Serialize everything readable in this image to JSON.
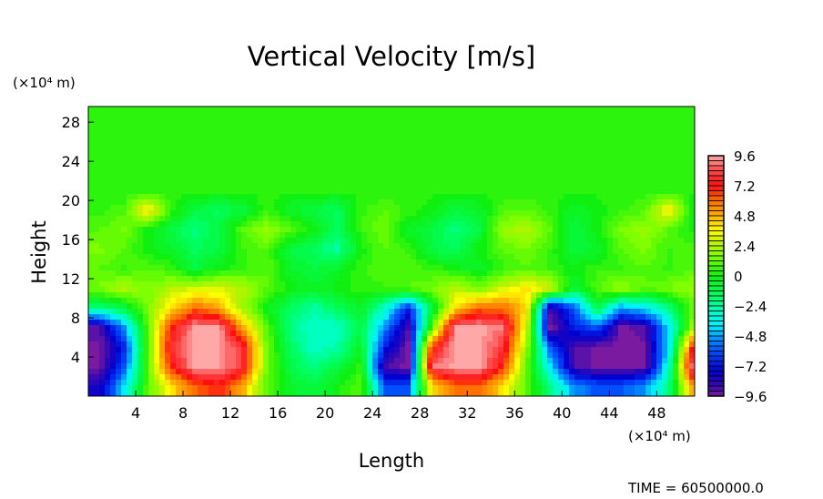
{
  "chart_data": {
    "type": "heatmap",
    "title": "Vertical Velocity [m/s]",
    "xlabel": "Length",
    "ylabel": "Height",
    "x_unit_label": "(×10⁴ m)",
    "y_unit_label": "(×10⁴ m)",
    "xlim": [
      0,
      51.2
    ],
    "ylim": [
      0,
      29.6
    ],
    "xticks": [
      4,
      8,
      12,
      16,
      20,
      24,
      28,
      32,
      36,
      40,
      44,
      48
    ],
    "yticks": [
      4,
      8,
      12,
      16,
      20,
      24,
      28
    ],
    "x": [
      1,
      3,
      5,
      7,
      9,
      11,
      13,
      15,
      17,
      19,
      21,
      23,
      25,
      27,
      29,
      31,
      33,
      35,
      37,
      39,
      41,
      43,
      45,
      47,
      49,
      51
    ],
    "y": [
      29,
      27,
      25,
      23,
      21,
      19,
      17,
      15,
      13,
      11,
      9,
      7,
      5,
      3,
      1
    ],
    "z": [
      [
        0.5,
        0.5,
        0.5,
        0.5,
        0.5,
        0.5,
        0.5,
        0.5,
        0.5,
        0.5,
        0.5,
        0.5,
        0.5,
        0.5,
        0.5,
        0.5,
        0.5,
        0.5,
        0.5,
        0.5,
        0.5,
        0.5,
        0.5,
        0.5,
        0.5,
        0.5
      ],
      [
        0.5,
        0.5,
        0.5,
        0.5,
        0.5,
        0.5,
        0.5,
        0.5,
        0.5,
        0.5,
        0.5,
        0.5,
        0.5,
        0.5,
        0.5,
        0.5,
        0.5,
        0.5,
        0.5,
        0.5,
        0.5,
        0.5,
        0.5,
        0.5,
        0.5,
        0.5
      ],
      [
        0.5,
        0.5,
        0.5,
        0.5,
        0.5,
        0.5,
        0.5,
        0.5,
        0.5,
        0.5,
        0.5,
        0.5,
        0.5,
        0.5,
        0.5,
        0.5,
        0.5,
        0.5,
        0.5,
        0.5,
        0.5,
        0.5,
        0.5,
        0.5,
        0.5,
        0.5
      ],
      [
        0.5,
        0.5,
        0.5,
        0.5,
        0.5,
        0.5,
        0.5,
        0.5,
        0.5,
        0.5,
        0.5,
        0.5,
        0.5,
        0.5,
        0.5,
        0.5,
        0.5,
        0.5,
        0.5,
        0.5,
        0.5,
        0.5,
        0.5,
        0.5,
        0.5,
        0.5
      ],
      [
        0.3,
        0.3,
        0.3,
        0.3,
        0.3,
        0.3,
        0.3,
        0.3,
        0.3,
        0.3,
        0.3,
        0.3,
        0.3,
        0.3,
        0.3,
        0.3,
        0.3,
        0.3,
        0.3,
        0.3,
        0.3,
        0.3,
        0.3,
        0.3,
        0.3,
        0.3
      ],
      [
        0.5,
        0.8,
        4,
        0.5,
        -1,
        -1.5,
        -1,
        0.5,
        -0.5,
        -1,
        -1.5,
        0.5,
        1,
        0.5,
        0,
        -1,
        -0.5,
        0.8,
        1,
        0.5,
        -0.5,
        0,
        0.5,
        1,
        4,
        -0.3
      ],
      [
        1,
        1.5,
        0,
        -1,
        -2,
        -1,
        1,
        2,
        1,
        0,
        -1.5,
        0.5,
        1.5,
        -0.5,
        -1,
        -2,
        -1,
        2,
        2.5,
        1,
        -1,
        0,
        1.5,
        2,
        1,
        0
      ],
      [
        1.5,
        1,
        0,
        -0.5,
        -1.5,
        -1,
        0.5,
        1,
        -1,
        -1.5,
        -2.5,
        0,
        1,
        0.5,
        -1,
        -1.5,
        0,
        1,
        1.5,
        0.5,
        -1,
        -0.5,
        1,
        1.5,
        0.5,
        1
      ],
      [
        1,
        0.5,
        1,
        0.5,
        -1,
        0,
        0.5,
        1,
        -0.5,
        -1,
        -0.5,
        0.5,
        1,
        1,
        0.5,
        0,
        -0.5,
        0.5,
        1,
        0.5,
        0,
        0.5,
        0.5,
        1,
        0.5,
        1
      ],
      [
        1.5,
        2.5,
        1.5,
        2.5,
        3,
        3,
        2.5,
        1,
        0,
        -0.5,
        0,
        0.5,
        0.5,
        1,
        1.5,
        2.5,
        1.5,
        3,
        4,
        3,
        -1,
        1,
        2,
        1,
        1.5,
        2
      ],
      [
        -2,
        -1,
        1.5,
        4,
        6,
        5,
        2,
        0,
        -1.5,
        -2.5,
        -1.5,
        -0.5,
        -3,
        -7,
        -1,
        4,
        6,
        6,
        4,
        -9,
        -6,
        -1,
        -5,
        -4,
        -2,
        1
      ],
      [
        -9,
        -5,
        1,
        7,
        9.6,
        9.6,
        5,
        1,
        -2,
        -3,
        -3,
        -1,
        -5,
        -9,
        1,
        9.6,
        9.6,
        9,
        3,
        -9.6,
        -7,
        -6,
        -9.6,
        -9,
        -4,
        2
      ],
      [
        -9.6,
        -7,
        1,
        8,
        9.6,
        9.6,
        8,
        1.5,
        -1.5,
        -3,
        -2.5,
        -0.5,
        -7,
        -9.6,
        7,
        9.6,
        9.6,
        8,
        2,
        -6,
        -9,
        -9.6,
        -9.6,
        -9.6,
        -4,
        7
      ],
      [
        -9.6,
        -6,
        1,
        7,
        9.6,
        9.6,
        8,
        1.5,
        -1,
        -2,
        -1,
        0.5,
        -9,
        -9.6,
        9,
        9.6,
        9.6,
        7,
        1,
        -4,
        -9,
        -9.6,
        -9.6,
        -9.6,
        -3,
        9
      ],
      [
        -8,
        -4,
        1,
        4,
        6,
        7,
        5,
        1,
        -0.5,
        -1,
        0,
        1,
        -6,
        -6,
        4,
        6,
        6,
        4,
        1,
        -2,
        -5,
        -6,
        -6,
        -5,
        -2,
        5
      ]
    ],
    "colorbar": {
      "range": [
        -9.6,
        9.6
      ],
      "step": 0.4,
      "tick_labels": [
        "9.6",
        "7.2",
        "4.8",
        "2.4",
        "0",
        "−2.4",
        "−4.8",
        "−7.2",
        "−9.6"
      ],
      "tick_values": [
        9.6,
        7.2,
        4.8,
        2.4,
        0,
        -2.4,
        -4.8,
        -7.2,
        -9.6
      ],
      "stops": [
        [
          -9.6,
          "#7a1aa0"
        ],
        [
          -8.8,
          "#3a0ab0"
        ],
        [
          -7.6,
          "#0000d0"
        ],
        [
          -6.0,
          "#0050ff"
        ],
        [
          -4.8,
          "#00a0ff"
        ],
        [
          -4.0,
          "#00f0ff"
        ],
        [
          -2.8,
          "#00ffc0"
        ],
        [
          -1.6,
          "#00ff60"
        ],
        [
          0,
          "#10f010"
        ],
        [
          1.6,
          "#80ff00"
        ],
        [
          2.8,
          "#c8f000"
        ],
        [
          3.6,
          "#ffff00"
        ],
        [
          4.8,
          "#ffb000"
        ],
        [
          6.0,
          "#ff7000"
        ],
        [
          7.2,
          "#ff1010"
        ],
        [
          8.4,
          "#ff4848"
        ],
        [
          9.6,
          "#ffa8a8"
        ]
      ]
    },
    "legend": "right"
  },
  "time_label": "TIME = 60500000.0"
}
